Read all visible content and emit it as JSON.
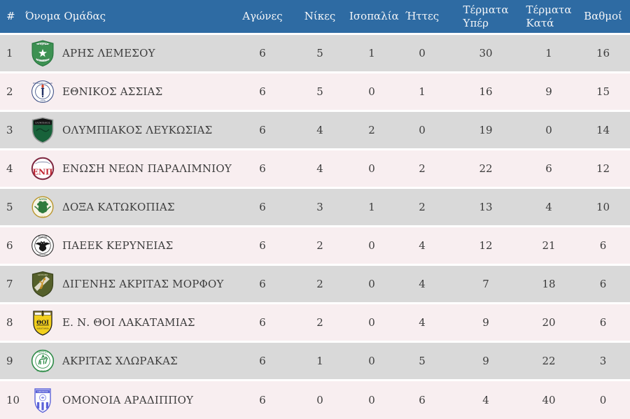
{
  "colors": {
    "header_bg": "#2e6ba3",
    "header_text": "#f5f6f8",
    "row_odd_bg": "#d9d9d9",
    "row_even_bg": "#f8eef0",
    "row_text": "#3c3c3c",
    "row_gap": "#ffffff"
  },
  "table": {
    "columns": [
      "#",
      "Όνομα Ομάδας",
      "Αγώνες",
      "Νίκες",
      "Ισοπαλία",
      "Ήττες",
      "Τέρματα\nΥπέρ",
      "Τέρματα\nΚατά",
      "Βαθμοί"
    ],
    "rows": [
      {
        "pos": "1",
        "team": "ΑΡΗΣ ΛΕΜΕΣΟΥ",
        "crest": "aris-lemesou-crest-icon",
        "games": "6",
        "wins": "5",
        "draws": "1",
        "losses": "0",
        "goals_for": "30",
        "goals_against": "1",
        "points": "16"
      },
      {
        "pos": "2",
        "team": "ΕΘΝΙΚΟΣ ΑΣΣΙΑΣ",
        "crest": "ethnikos-assias-crest-icon",
        "games": "6",
        "wins": "5",
        "draws": "0",
        "losses": "1",
        "goals_for": "16",
        "goals_against": "9",
        "points": "15"
      },
      {
        "pos": "3",
        "team": "ΟΛΥΜΠΙΑΚΟΣ ΛΕΥΚΩΣΙΑΣ",
        "crest": "olympiakos-lefkosias-crest-icon",
        "games": "6",
        "wins": "4",
        "draws": "2",
        "losses": "0",
        "goals_for": "19",
        "goals_against": "0",
        "points": "14"
      },
      {
        "pos": "4",
        "team": "ΕΝΩΣΗ ΝΕΩΝ ΠΑΡΑΛΙΜΝΙΟΥ",
        "crest": "enosi-neon-paralimniou-crest-icon",
        "games": "6",
        "wins": "4",
        "draws": "0",
        "losses": "2",
        "goals_for": "22",
        "goals_against": "6",
        "points": "12"
      },
      {
        "pos": "5",
        "team": "ΔΟΞΑ ΚΑΤΩΚΟΠΙΑΣ",
        "crest": "doxa-katokopias-crest-icon",
        "games": "6",
        "wins": "3",
        "draws": "1",
        "losses": "2",
        "goals_for": "13",
        "goals_against": "4",
        "points": "10"
      },
      {
        "pos": "6",
        "team": "ΠΑΕΕΚ ΚΕΡΥΝΕΙΑΣ",
        "crest": "paeek-keryneias-crest-icon",
        "games": "6",
        "wins": "2",
        "draws": "0",
        "losses": "4",
        "goals_for": "12",
        "goals_against": "21",
        "points": "6"
      },
      {
        "pos": "7",
        "team": "ΔΙΓΕΝΗΣ ΑΚΡΙΤΑΣ ΜΟΡΦΟΥ",
        "crest": "digenis-akritas-morfou-crest-icon",
        "games": "6",
        "wins": "2",
        "draws": "0",
        "losses": "4",
        "goals_for": "7",
        "goals_against": "18",
        "points": "6"
      },
      {
        "pos": "8",
        "team": "Ε. Ν. ΘΟΙ ΛΑΚΑΤΑΜΙΑΣ",
        "crest": "en-thoi-lakatamias-crest-icon",
        "games": "6",
        "wins": "2",
        "draws": "0",
        "losses": "4",
        "goals_for": "9",
        "goals_against": "20",
        "points": "6"
      },
      {
        "pos": "9",
        "team": "ΑΚΡΙΤΑΣ ΧΛΩΡΑΚΑΣ",
        "crest": "akritas-chlorakas-crest-icon",
        "games": "6",
        "wins": "1",
        "draws": "0",
        "losses": "5",
        "goals_for": "9",
        "goals_against": "22",
        "points": "3"
      },
      {
        "pos": "10",
        "team": "ΟΜΟΝΟΙΑ ΑΡΑΔΙΠΠΟΥ",
        "crest": "omonoia-aradippou-crest-icon",
        "games": "6",
        "wins": "0",
        "draws": "0",
        "losses": "6",
        "goals_for": "4",
        "goals_against": "40",
        "points": "0"
      }
    ]
  }
}
